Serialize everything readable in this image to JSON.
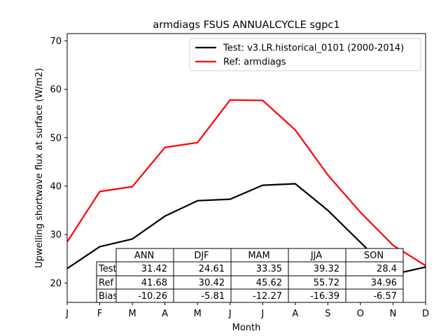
{
  "chart_data": {
    "type": "line",
    "title": "armdiags FSUS ANNUALCYCLE sgpc1",
    "xlabel": "Month",
    "ylabel": "Upwelling shortwave flux at surface (W/m2)",
    "x_ticks": [
      "J",
      "F",
      "M",
      "A",
      "M",
      "J",
      "J",
      "A",
      "S",
      "O",
      "N",
      "D"
    ],
    "y_ticks": [
      20,
      30,
      40,
      50,
      60,
      70
    ],
    "ylim": [
      16,
      71.5
    ],
    "grid": false,
    "legend_position": "top-right",
    "series": [
      {
        "name": "Test: v3.LR.historical_0101 (2000-2014)",
        "color": "#000000",
        "values": [
          23.0,
          27.5,
          29.1,
          33.8,
          37.0,
          37.3,
          40.2,
          40.5,
          35.0,
          28.4,
          21.8,
          23.3
        ]
      },
      {
        "name": "Ref: armdiags",
        "color": "#ff0000",
        "values": [
          28.5,
          38.9,
          39.9,
          48.0,
          49.0,
          57.8,
          57.7,
          51.6,
          42.3,
          34.6,
          27.8,
          23.6
        ]
      }
    ],
    "table": {
      "columns": [
        "ANN",
        "DJF",
        "MAM",
        "JJA",
        "SON"
      ],
      "rows": [
        {
          "label": "Test",
          "values": [
            "31.42",
            "24.61",
            "33.35",
            "39.32",
            "28.4"
          ]
        },
        {
          "label": "Ref",
          "values": [
            "41.68",
            "30.42",
            "45.62",
            "55.72",
            "34.96"
          ]
        },
        {
          "label": "Bias",
          "values": [
            "-10.26",
            "-5.81",
            "-12.27",
            "-16.39",
            "-6.57"
          ]
        }
      ]
    }
  }
}
